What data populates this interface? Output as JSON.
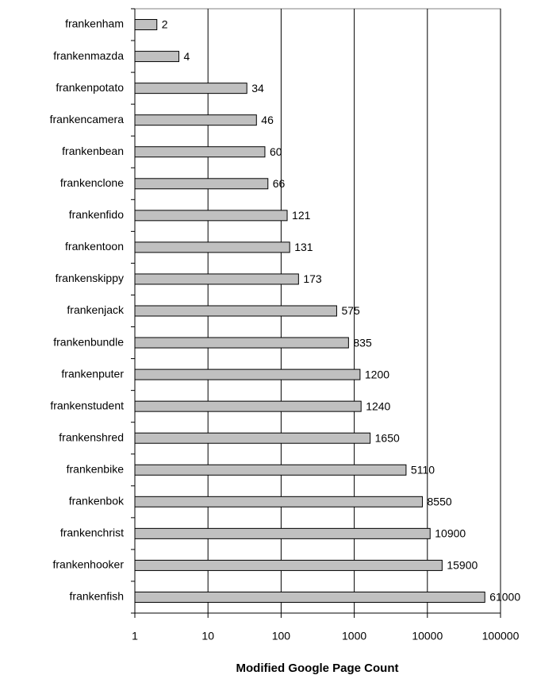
{
  "chart_data": {
    "type": "bar",
    "orientation": "horizontal",
    "x_label": "Modified Google Page Count",
    "categories": [
      "frankenham",
      "frankenmazda",
      "frankenpotato",
      "frankencamera",
      "frankenbean",
      "frankenclone",
      "frankenfido",
      "frankentoon",
      "frankenskippy",
      "frankenjack",
      "frankenbundle",
      "frankenputer",
      "frankenstudent",
      "frankenshred",
      "frankenbike",
      "frankenbok",
      "frankenchrist",
      "frankenhooker",
      "frankenfish"
    ],
    "values": [
      2,
      4,
      34,
      46,
      60,
      66,
      121,
      131,
      173,
      575,
      835,
      1200,
      1240,
      1650,
      5110,
      8550,
      10900,
      15900,
      61000
    ],
    "color": "#c0c0c0",
    "xlim": [
      1,
      100000
    ],
    "xticks": [
      1,
      10,
      100,
      1000,
      10000,
      100000
    ],
    "log_scale": true,
    "grid": true
  }
}
